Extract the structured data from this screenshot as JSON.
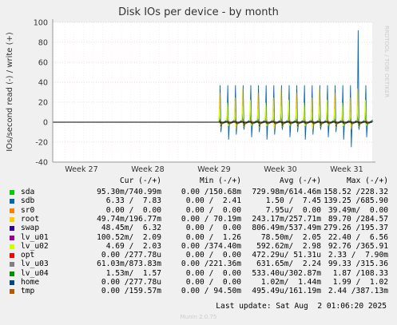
{
  "title": "Disk IOs per device - by month",
  "watermark": "RRDTOOL / TOBI OETIKER",
  "version": "Munin 2.0.75",
  "last_update": "Last update: Sat Aug  2 01:06:20 2025",
  "chart_data": {
    "type": "line",
    "title": "Disk IOs per device - by month",
    "ylabel": "IOs/second read (-) / write (+)",
    "ylim": [
      -40,
      100
    ],
    "yticks": [
      -40,
      -20,
      0,
      20,
      40,
      60,
      80,
      100
    ],
    "x_ticks": [
      "Week 27",
      "Week 28",
      "Week 29",
      "Week 30",
      "Week 31"
    ],
    "grid": true,
    "data_start_fraction": 0.52,
    "spike_count": 20,
    "series": [
      {
        "name": "sda",
        "color": "#00cc00",
        "write_peak": 12,
        "read_peak": -8
      },
      {
        "name": "sdb",
        "color": "#0066b3",
        "write_peak": 92,
        "read_peak": -25
      },
      {
        "name": "sr0",
        "color": "#ff8000",
        "write_peak": 0,
        "read_peak": 0
      },
      {
        "name": "root",
        "color": "#ffcc00",
        "write_peak": 45,
        "read_peak": -10
      },
      {
        "name": "swap",
        "color": "#330099",
        "write_peak": 3,
        "read_peak": -5
      },
      {
        "name": "lv_u01",
        "color": "#990099",
        "write_peak": 4,
        "read_peak": -3
      },
      {
        "name": "lv_u02",
        "color": "#ccff00",
        "write_peak": 30,
        "read_peak": -6
      },
      {
        "name": "opt",
        "color": "#ff0000",
        "write_peak": 1,
        "read_peak": -1
      },
      {
        "name": "lv_u03",
        "color": "#808080",
        "write_peak": 5,
        "read_peak": -4
      },
      {
        "name": "lv_u04",
        "color": "#008f00",
        "write_peak": 2,
        "read_peak": -2
      },
      {
        "name": "home",
        "color": "#00487d",
        "write_peak": 1,
        "read_peak": -1
      },
      {
        "name": "tmp",
        "color": "#b35a00",
        "write_peak": 1,
        "read_peak": -1
      }
    ]
  },
  "legend": {
    "headers": {
      "cur": "Cur (-/+)",
      "min": "Min (-/+)",
      "avg": "Avg (-/+)",
      "max": "Max (-/+)"
    },
    "rows": [
      {
        "name": "sda",
        "color": "#00cc00",
        "cur": "95.30m/740.99m",
        "min": "0.00 /150.68m",
        "avg": "729.98m/614.46m",
        "max": "158.52 /228.32"
      },
      {
        "name": "sdb",
        "color": "#0066b3",
        "cur": "6.33 /  7.83",
        "min": "0.00 /  2.41",
        "avg": "1.50 /  7.45",
        "max": "139.25 /685.90"
      },
      {
        "name": "sr0",
        "color": "#ff8000",
        "cur": "0.00 /  0.00",
        "min": "0.00 /  0.00",
        "avg": "7.95u/  0.00",
        "max": "39.49m/  0.00"
      },
      {
        "name": "root",
        "color": "#ffcc00",
        "cur": "49.74m/196.77m",
        "min": "0.00 / 70.19m",
        "avg": "243.17m/257.71m",
        "max": "89.70 /284.57"
      },
      {
        "name": "swap",
        "color": "#330099",
        "cur": "48.45m/  6.32",
        "min": "0.00 /  0.00",
        "avg": "806.49m/537.49m",
        "max": "279.26 /195.37"
      },
      {
        "name": "lv_u01",
        "color": "#990099",
        "cur": "100.52m/  2.09",
        "min": "0.00 /  1.26",
        "avg": "78.50m/  2.05",
        "max": "22.40 /  6.56"
      },
      {
        "name": "lv_u02",
        "color": "#ccff00",
        "cur": "4.69 /  2.03",
        "min": "0.00 /374.40m",
        "avg": "592.62m/  2.98",
        "max": "92.76 /365.91"
      },
      {
        "name": "opt",
        "color": "#ff0000",
        "cur": "0.00 /277.78u",
        "min": "0.00 /  0.00",
        "avg": "472.29u/ 51.31u",
        "max": "2.33 /  7.90m"
      },
      {
        "name": "lv_u03",
        "color": "#808080",
        "cur": "61.03m/873.83m",
        "min": "0.00 /221.36m",
        "avg": "631.65m/  2.24",
        "max": "99.33 /315.36"
      },
      {
        "name": "lv_u04",
        "color": "#008f00",
        "cur": "1.53m/  1.57",
        "min": "0.00 /  0.00",
        "avg": "533.40u/302.87m",
        "max": "1.87 /108.33"
      },
      {
        "name": "home",
        "color": "#00487d",
        "cur": "0.00 /277.78u",
        "min": "0.00 /  0.00",
        "avg": "1.02m/  1.44m",
        "max": "1.99 /  1.02"
      },
      {
        "name": "tmp",
        "color": "#b35a00",
        "cur": "0.00 /159.57m",
        "min": "0.00 / 94.50m",
        "avg": "495.49u/161.19m",
        "max": "2.44 /387.13m"
      }
    ]
  }
}
